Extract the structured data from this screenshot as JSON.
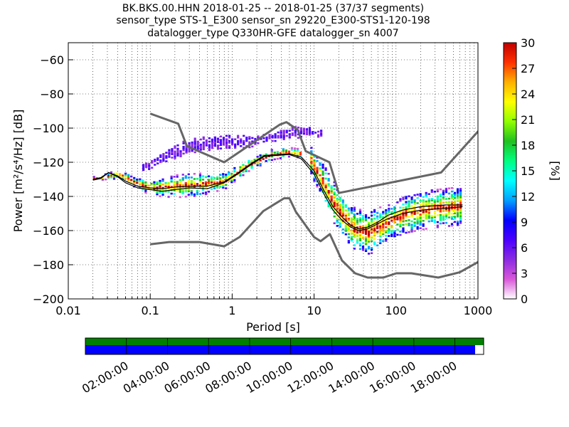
{
  "chart_data": [
    {
      "type": "heatmap",
      "title_lines": [
        "BK.BKS.00.HHN   2018-01-25 -- 2018-01-25  (37/37 segments)",
        "sensor_type STS-1_E300 sensor_sn 29220_E300-STS1-120-198",
        "datalogger_type Q330HR-GFE datalogger_sn 4007"
      ],
      "xlabel": "Period [s]",
      "ylabel": "Power [m²/s⁴/Hz] [dB]",
      "x_scale": "log",
      "xlim": [
        0.01,
        1000
      ],
      "ylim": [
        -200,
        -50
      ],
      "x_ticks": [
        0.01,
        0.1,
        1,
        10,
        100,
        1000
      ],
      "x_tick_labels": [
        "0.01",
        "0.1",
        "1",
        "10",
        "100",
        "1000"
      ],
      "y_ticks": [
        -200,
        -180,
        -160,
        -140,
        -120,
        -100,
        -80,
        -60
      ],
      "y_tick_labels": [
        "−200",
        "−180",
        "−160",
        "−140",
        "−120",
        "−100",
        "−80",
        "−60"
      ],
      "grid": "dotted, vertical and horizontal",
      "colorbar": {
        "label": "[%]",
        "range": [
          0,
          30
        ],
        "ticks": [
          0,
          3,
          6,
          9,
          12,
          15,
          18,
          21,
          24,
          27,
          30
        ],
        "tick_labels": [
          "0",
          "3",
          "6",
          "9",
          "12",
          "15",
          "18",
          "21",
          "24",
          "27",
          "30"
        ],
        "colors": [
          "#ffffff",
          "#d957d9",
          "#8a2be2",
          "#4b00ff",
          "#0000ff",
          "#00a0ff",
          "#00ffff",
          "#00ff80",
          "#20c020",
          "#90ff00",
          "#ffff00",
          "#ffb000",
          "#ff3000",
          "#c00000"
        ]
      },
      "series": [
        {
          "name": "High noise model",
          "color": "#666666",
          "x": [
            0.1,
            0.22,
            0.28,
            0.8,
            3.8,
            4.6,
            6.3,
            7.9,
            15.4,
            20,
            354.8,
            10000
          ],
          "y": [
            -91.5,
            -97.4,
            -110.5,
            -120,
            -98,
            -96.5,
            -101,
            -113.5,
            -120,
            -138,
            -126,
            -48.5
          ]
        },
        {
          "name": "Low noise model",
          "color": "#666666",
          "x": [
            0.1,
            0.17,
            0.4,
            0.8,
            1.24,
            2.4,
            4.3,
            5,
            6,
            10,
            12,
            15.6,
            21.9,
            31.6,
            45,
            70,
            101,
            154,
            328,
            600,
            10000
          ],
          "y": [
            -168,
            -166.7,
            -166.7,
            -169.2,
            -163.7,
            -148.6,
            -141.1,
            -141.1,
            -149,
            -163.8,
            -166.2,
            -162.1,
            -177.5,
            -185,
            -187.5,
            -187.5,
            -185,
            -185,
            -187.5,
            -184.4,
            -151.5
          ]
        },
        {
          "name": "Mean",
          "color": "#000000",
          "x": [
            0.02,
            0.025,
            0.031,
            0.04,
            0.05,
            0.07,
            0.1,
            0.14,
            0.2,
            0.3,
            0.5,
            0.8,
            1.2,
            1.8,
            2.5,
            3.5,
            5,
            7,
            10,
            13,
            17,
            22,
            28,
            35,
            45,
            60,
            80,
            120,
            200,
            400,
            650
          ],
          "y": [
            -130,
            -129,
            -126,
            -128,
            -131,
            -134,
            -135,
            -135.5,
            -134.5,
            -134,
            -134,
            -131.5,
            -126,
            -120,
            -116,
            -115.5,
            -115,
            -117,
            -125,
            -136,
            -146,
            -152,
            -157,
            -159,
            -158,
            -155,
            -151,
            -148,
            -146,
            -145,
            -145
          ]
        },
        {
          "name": "Mode",
          "color": "#000000",
          "x": [
            0.02,
            0.025,
            0.031,
            0.04,
            0.05,
            0.07,
            0.1,
            0.14,
            0.2,
            0.3,
            0.5,
            0.8,
            1.2,
            1.8,
            2.5,
            3.5,
            5,
            7,
            10,
            13,
            17,
            22,
            28,
            35,
            45,
            60,
            80,
            120,
            200,
            400,
            650
          ],
          "y": [
            -130.5,
            -129.5,
            -126,
            -128.5,
            -132,
            -135,
            -136,
            -137,
            -136,
            -135,
            -135.5,
            -132,
            -126.5,
            -120.5,
            -116.5,
            -116,
            -115.5,
            -118,
            -127,
            -138,
            -148,
            -154,
            -158,
            -160,
            -159,
            -156,
            -153,
            -150,
            -148,
            -147,
            -146
          ]
        }
      ],
      "density_bands": [
        {
          "x": [
            0.02,
            0.04,
            0.07,
            0.1,
            0.2,
            0.4,
            0.8,
            1.5,
            3,
            5,
            7
          ],
          "y_low": [
            -131,
            -130,
            -136,
            -140,
            -141,
            -140,
            -136,
            -126,
            -119,
            -117,
            -118
          ],
          "y_high": [
            -129,
            -125,
            -130,
            -131,
            -128,
            -127,
            -127,
            -119,
            -113,
            -112,
            -113
          ]
        },
        {
          "x": [
            0.08,
            0.15,
            0.3,
            0.8,
            1.5,
            3,
            5,
            8,
            12
          ],
          "y_low": [
            -126,
            -120,
            -115,
            -112,
            -112,
            -108,
            -108,
            -104,
            -106
          ],
          "y_high": [
            -122,
            -114,
            -106,
            -105,
            -105,
            -104,
            -99,
            -100,
            -101
          ]
        },
        {
          "x": [
            9,
            12,
            16,
            22,
            30,
            45,
            70,
            120,
            250,
            600
          ],
          "y_low": [
            -128,
            -140,
            -155,
            -165,
            -172,
            -175,
            -168,
            -162,
            -159,
            -157
          ],
          "y_high": [
            -112,
            -120,
            -130,
            -140,
            -147,
            -149,
            -146,
            -141,
            -137,
            -135
          ]
        }
      ]
    },
    {
      "type": "timeline",
      "x_tick_labels": [
        "02:00:00",
        "04:00:00",
        "06:00:00",
        "08:00:00",
        "10:00:00",
        "12:00:00",
        "14:00:00",
        "16:00:00",
        "18:00:00"
      ],
      "data_coverage_color": "#008000",
      "segment_coverage_color": "#0000ff"
    }
  ]
}
